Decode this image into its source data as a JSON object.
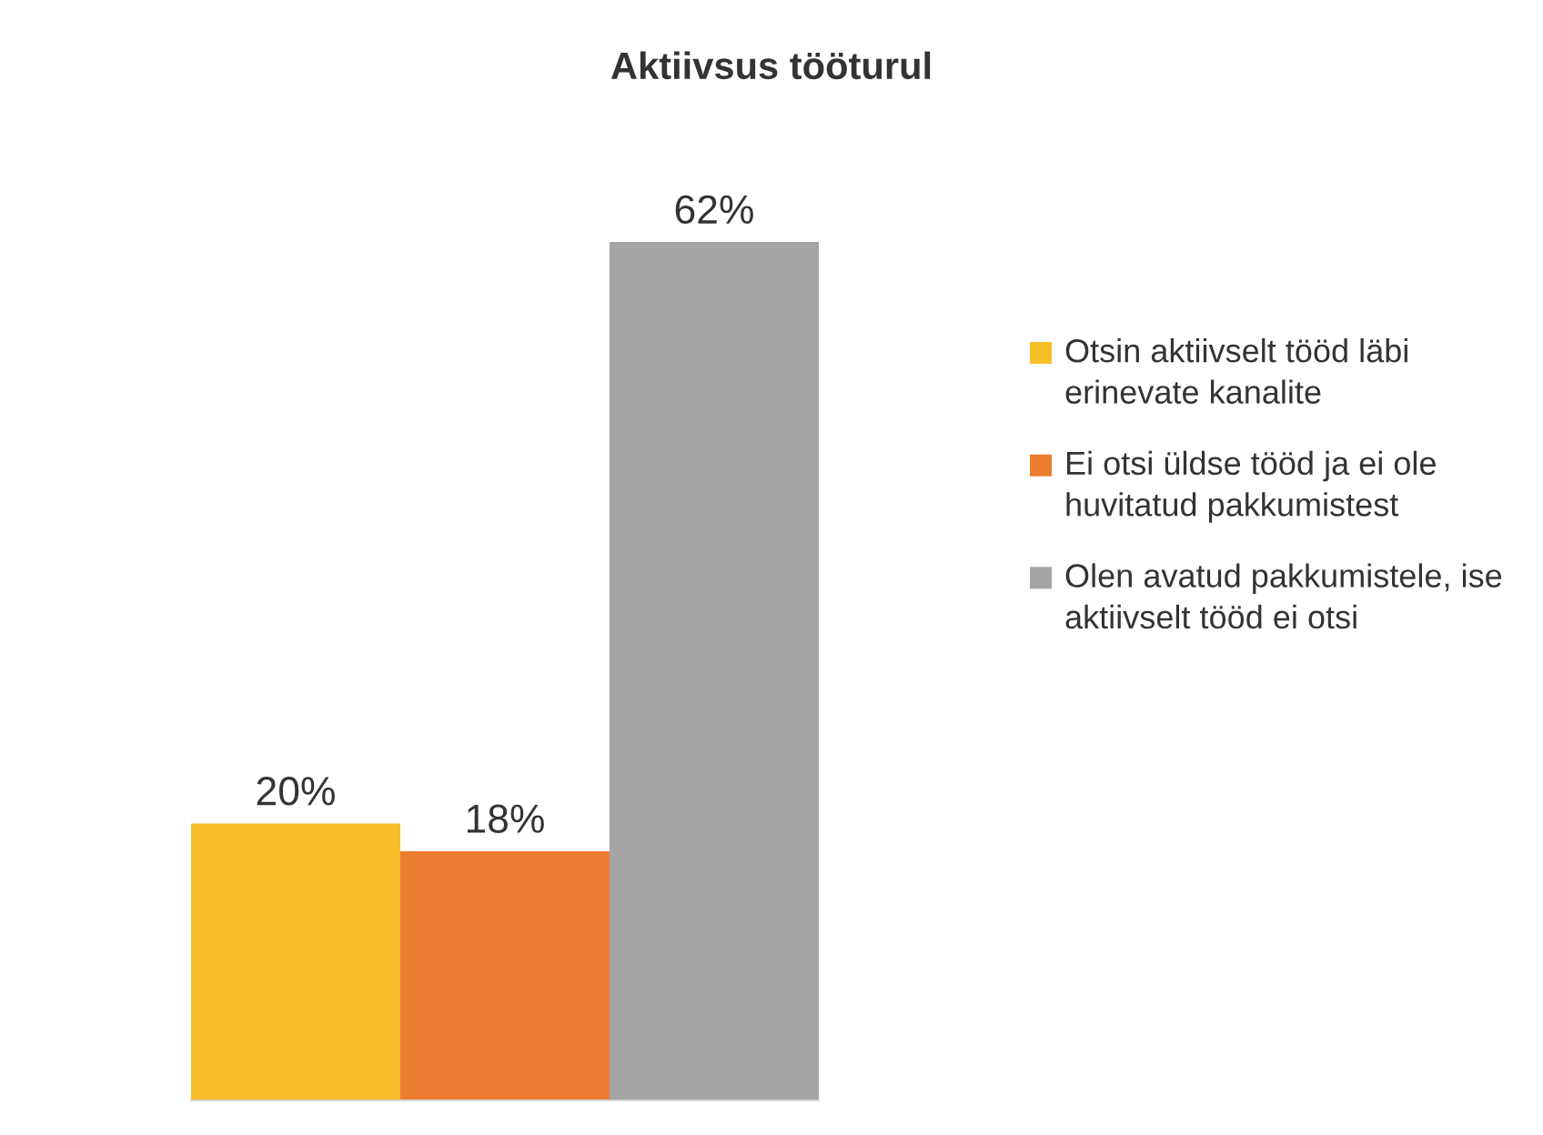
{
  "chart_data": {
    "type": "bar",
    "title": "Aktiivsus tööturul",
    "categories": [
      null
    ],
    "series": [
      {
        "name": "Otsin aktiivselt tööd läbi erinevate kanalite",
        "color": "#f6be28",
        "values": [
          20
        ],
        "value_labels": [
          "20%"
        ]
      },
      {
        "name": "Ei otsi üldse tööd ja ei ole huvitatud pakkumistest",
        "color": "#ed7d31",
        "values": [
          18
        ],
        "value_labels": [
          "18%"
        ]
      },
      {
        "name": "Olen avatud pakkumistele, ise aktiivselt tööd ei otsi",
        "color": "#a5a5a5",
        "values": [
          62
        ],
        "value_labels": [
          "62%"
        ]
      }
    ],
    "legend": "right",
    "grid": false
  }
}
